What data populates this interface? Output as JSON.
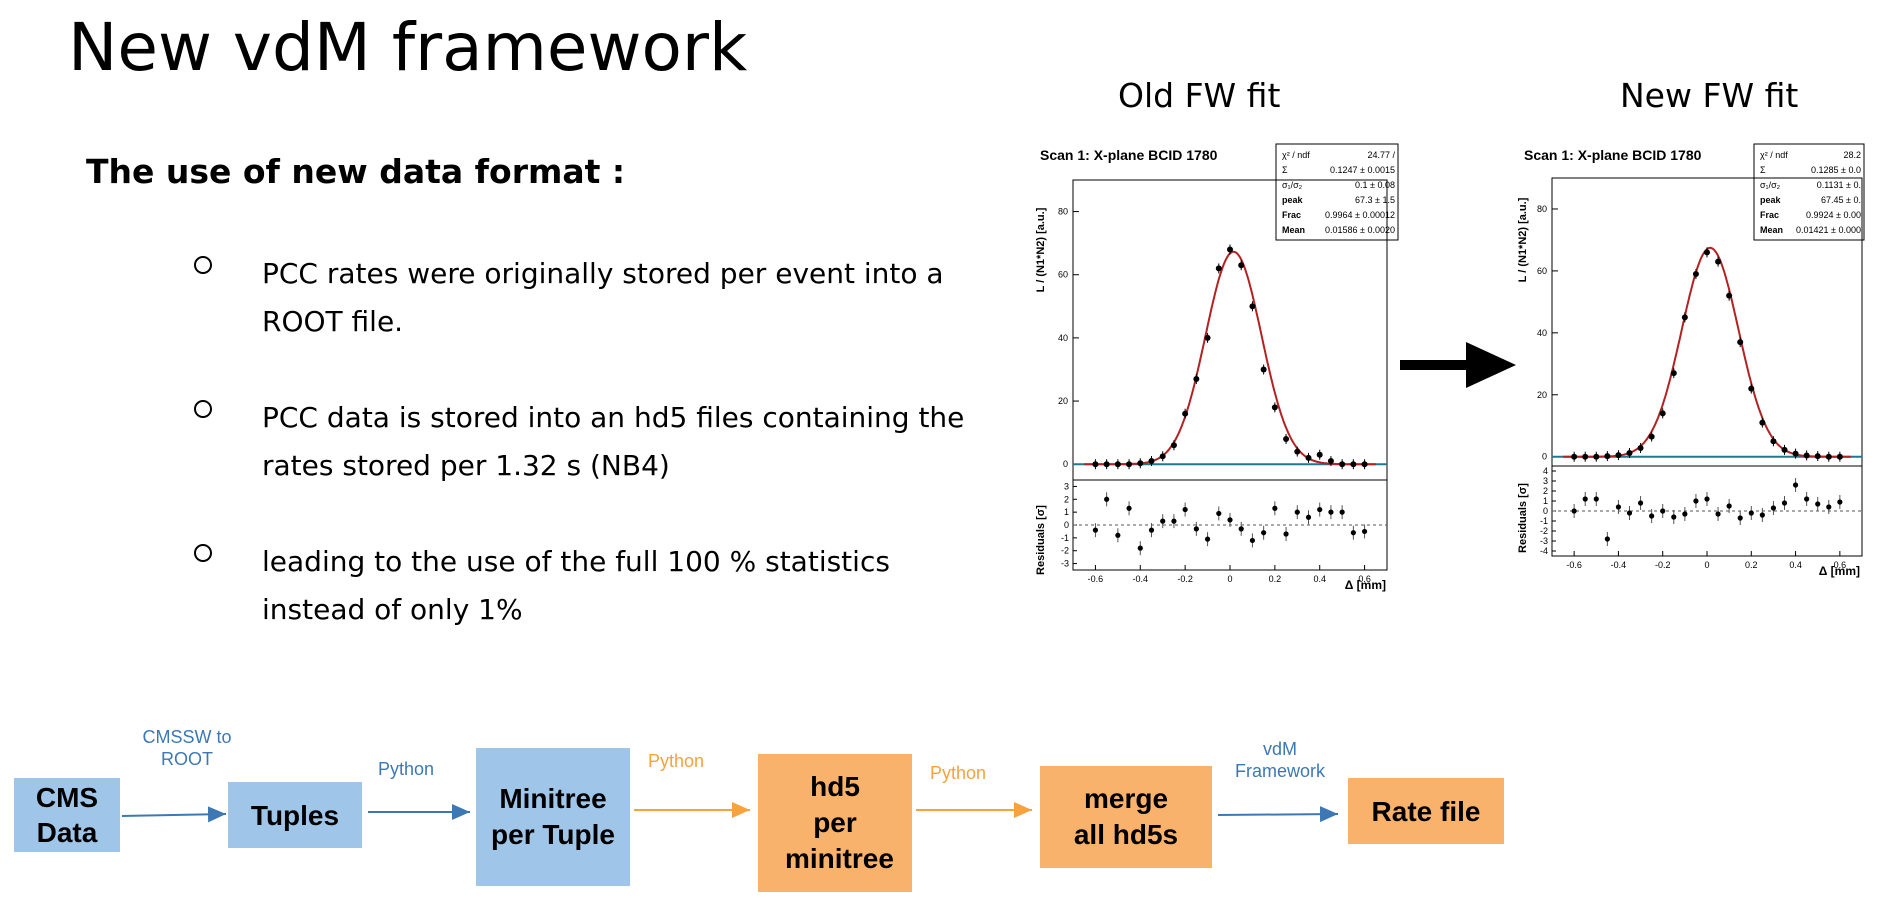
{
  "slide": {
    "title": "New vdM framework",
    "subtitle": "The use of new data format :",
    "bullets": [
      {
        "text": " PCC rates were originally stored per event into a ROOT file."
      },
      {
        "text": "PCC data is stored into an hd5 files containing the rates stored per 1.32 s (NB4)"
      },
      {
        "text": "leading to the use of the full 100 % statistics instead of only 1%"
      }
    ]
  },
  "fits": {
    "old": {
      "heading": "Old FW fit",
      "plot_title": "Scan 1: X-plane BCID 1780",
      "ylabel": "L / (N1*N2) [a.u.]",
      "res_label": "Residuals [σ]",
      "xlabel": "Δ [mm]",
      "stats": [
        {
          "name": "χ² / ndf",
          "value": "24.77 /"
        },
        {
          "name": "Σ",
          "value": "0.1247 ± 0.0015"
        },
        {
          "name": "σ₁/σ₂",
          "value": "0.1 ± 0.08"
        },
        {
          "name": "peak",
          "value": "67.3 ± 1.5"
        },
        {
          "name": "Frac",
          "value": "0.9964 ± 0.00012"
        },
        {
          "name": "Mean",
          "value": "0.01586 ± 0.0020"
        }
      ]
    },
    "new": {
      "heading": "New FW fit",
      "plot_title": "Scan 1: X-plane BCID 1780",
      "ylabel": "L / (N1*N2) [a.u.]",
      "res_label": "Residuals [σ]",
      "xlabel": "Δ [mm]",
      "stats": [
        {
          "name": "χ² / ndf",
          "value": "28.2"
        },
        {
          "name": "Σ",
          "value": "0.1285 ± 0.0"
        },
        {
          "name": "σ₁/σ₂",
          "value": "0.1131 ± 0."
        },
        {
          "name": "peak",
          "value": "67.45 ± 0."
        },
        {
          "name": "Frac",
          "value": "0.9924 ± 0.00"
        },
        {
          "name": "Mean",
          "value": "0.01421 ± 0.000"
        }
      ]
    }
  },
  "chart_data": [
    {
      "type": "scatter",
      "title": "Scan 1: X-plane BCID 1780",
      "xlabel": "Δ [mm]",
      "ylabel": "L / (N1*N2) [a.u.]",
      "xlim": [
        -0.7,
        0.7
      ],
      "ylim": [
        -5,
        90
      ],
      "x_ticks": [
        -0.6,
        -0.4,
        -0.2,
        0,
        0.2,
        0.4,
        0.6
      ],
      "y_ticks": [
        0,
        20,
        40,
        60,
        80
      ],
      "fit": {
        "peak": 67.3,
        "mean": 0.01586,
        "sigma": 0.1247
      },
      "x": [
        -0.6,
        -0.55,
        -0.5,
        -0.45,
        -0.4,
        -0.35,
        -0.3,
        -0.25,
        -0.2,
        -0.15,
        -0.1,
        -0.05,
        0,
        0.05,
        0.1,
        0.15,
        0.2,
        0.25,
        0.3,
        0.35,
        0.4,
        0.45,
        0.5,
        0.55,
        0.6
      ],
      "y": [
        0,
        0,
        0,
        0,
        0.3,
        1,
        2.5,
        6,
        16,
        27,
        40,
        62,
        68,
        63,
        50,
        30,
        18,
        8,
        4,
        2,
        3,
        1,
        0,
        0,
        0
      ],
      "residual_ylim": [
        -3.5,
        3.5
      ],
      "residual_ticks": [
        -3,
        -2,
        -1,
        0,
        1,
        2,
        3
      ],
      "residuals": [
        -0.4,
        2,
        -0.8,
        1.3,
        -1.8,
        -0.4,
        0.3,
        0.3,
        1.2,
        -0.3,
        -1.1,
        0.9,
        0.4,
        -0.3,
        -1.2,
        -0.6,
        1.3,
        -0.7,
        1,
        0.6,
        1.2,
        1,
        1,
        -0.6,
        -0.5
      ]
    },
    {
      "type": "scatter",
      "title": "Scan 1: X-plane BCID 1780",
      "xlabel": "Δ [mm]",
      "ylabel": "L / (N1*N2) [a.u.]",
      "xlim": [
        -0.7,
        0.7
      ],
      "ylim": [
        -3,
        90
      ],
      "x_ticks": [
        -0.6,
        -0.4,
        -0.2,
        0,
        0.2,
        0.4,
        0.6
      ],
      "y_ticks": [
        0,
        20,
        40,
        60,
        80
      ],
      "fit": {
        "peak": 67.45,
        "mean": 0.01421,
        "sigma": 0.1285
      },
      "x": [
        -0.6,
        -0.55,
        -0.5,
        -0.45,
        -0.4,
        -0.35,
        -0.3,
        -0.25,
        -0.2,
        -0.15,
        -0.1,
        -0.05,
        0,
        0.05,
        0.1,
        0.15,
        0.2,
        0.25,
        0.3,
        0.35,
        0.4,
        0.45,
        0.5,
        0.55,
        0.6
      ],
      "y": [
        0,
        0,
        0,
        0.2,
        0.5,
        1.2,
        2.8,
        6.5,
        14,
        27,
        45,
        59,
        66,
        63,
        52,
        37,
        22,
        11,
        5,
        2.2,
        1,
        0.4,
        0.2,
        0,
        0
      ],
      "residual_ylim": [
        -4.5,
        4.5
      ],
      "residual_ticks": [
        -4,
        -3,
        -2,
        -1,
        0,
        1,
        2,
        3,
        4
      ],
      "residuals": [
        0,
        1.2,
        1.2,
        -2.8,
        0.4,
        -0.2,
        0.8,
        -0.5,
        0,
        -0.6,
        -0.3,
        1,
        1.2,
        -0.3,
        0.5,
        -0.7,
        -0.2,
        -0.4,
        0.3,
        0.8,
        2.6,
        1.2,
        0.7,
        0.4,
        0.9
      ]
    }
  ],
  "flow": {
    "boxes": [
      {
        "label": "CMS Data"
      },
      {
        "label": "Tuples"
      },
      {
        "label": "Minitree per Tuple"
      },
      {
        "label": "hd5 per minitree"
      },
      {
        "label": "merge all hd5s"
      },
      {
        "label": "Rate file"
      }
    ],
    "arrows": [
      {
        "label": "CMSSW to ROOT"
      },
      {
        "label": "Python"
      },
      {
        "label": "Python"
      },
      {
        "label": "Python"
      },
      {
        "label": "vdM Framework"
      }
    ],
    "colors": {
      "blue_box": "#9fc5e8",
      "orange_box": "#f9b26b",
      "blue_text": "#3d78b4",
      "orange_text": "#f6a23e"
    }
  }
}
